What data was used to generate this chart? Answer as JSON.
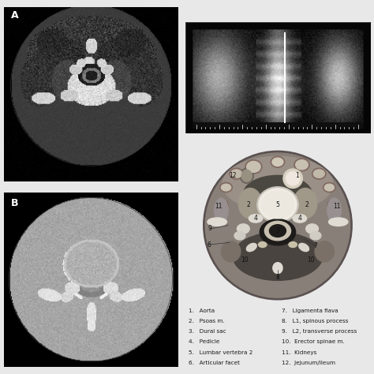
{
  "background_color": "#e8e8e8",
  "label_A": "A",
  "label_B": "B",
  "legend_items_left": [
    "1.   Aorta",
    "2.   Psoas m.",
    "3.   Dural sac",
    "4.   Pedicle",
    "5.   Lumbar vertebra 2",
    "6.   Articular facet"
  ],
  "legend_items_right": [
    "7.   Ligamenta flava",
    "8.   L1, spinous process",
    "9.   L2, transverse process",
    "10.  Erector spinae m.",
    "11.  Kidneys",
    "12.  Jejunum/ileum"
  ],
  "diag_bg": "#b8b0a8",
  "diag_dark": "#4a4040",
  "diag_bone": "#ece8e0",
  "diag_muscle": "#909898",
  "diag_organ": "#a0a8a0",
  "diag_dark_canal": "#1a1818",
  "diag_dural": "#d8d0c0",
  "ct_a_bg": "#000000",
  "ct_b_bg": "#b8b4b0",
  "xray_center": "#c8c0b8",
  "xray_dark": "#101010"
}
